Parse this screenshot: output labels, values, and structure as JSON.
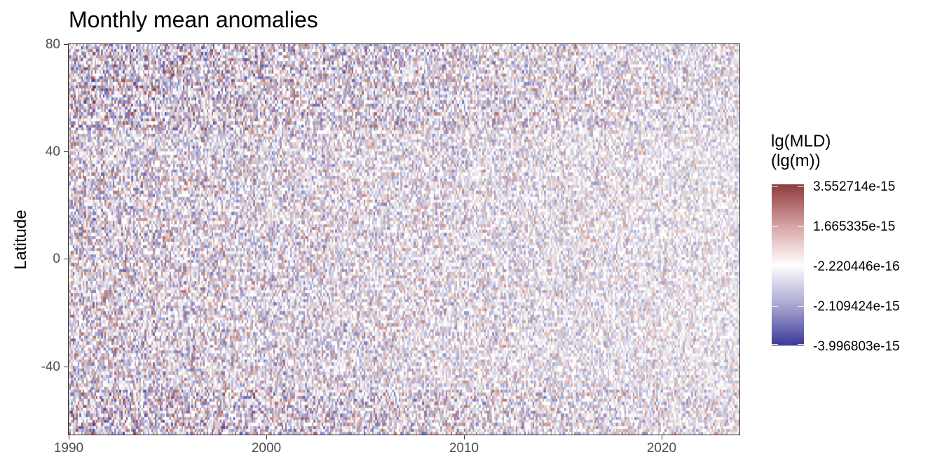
{
  "chart_data": {
    "type": "heatmap",
    "title": "Monthly mean anomalies",
    "xlabel": "",
    "ylabel": "Latitude",
    "xlim": [
      1990,
      2024
    ],
    "ylim": [
      -65,
      80
    ],
    "x_ticks": [
      "1990",
      "2000",
      "2010",
      "2020"
    ],
    "x_tick_values": [
      1990,
      2000,
      2010,
      2020
    ],
    "y_ticks": [
      "80",
      "40",
      "0",
      "-40"
    ],
    "y_tick_values": [
      80,
      40,
      0,
      -40
    ],
    "legend": {
      "title_line1": "lg(MLD)",
      "title_line2": "(lg(m))",
      "placement": "right",
      "labels": [
        "3.552714e-15",
        "1.665335e-15",
        "-2.220446e-16",
        "-2.109424e-15",
        "-3.996803e-15"
      ],
      "values": [
        3.552714e-15,
        1.665335e-15,
        -2.220446e-16,
        -2.109424e-15,
        -3.996803e-15
      ],
      "range": [
        -3.996803e-15,
        3.552714e-15
      ],
      "colors": {
        "high": "#8e3b3b",
        "mid": "#ffffff",
        "low": "#3b3997"
      }
    },
    "grid": false
  }
}
